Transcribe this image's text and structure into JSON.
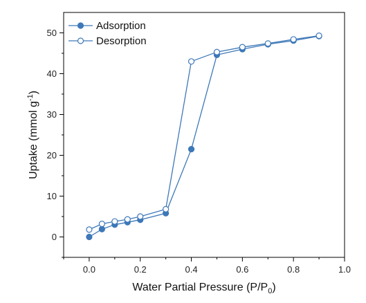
{
  "chart_data": {
    "type": "line",
    "xlabel": {
      "main": "Water Partial Pressure (P/P",
      "sub": "0",
      "end": ")"
    },
    "ylabel": {
      "main": "Uptake (mmol g",
      "sup": "-1",
      "end": ")"
    },
    "xlim": [
      -0.1,
      1.0
    ],
    "ylim": [
      -5,
      55
    ],
    "x_ticks": [
      0.0,
      0.2,
      0.4,
      0.6,
      0.8,
      1.0
    ],
    "x_tick_labels": [
      "0.0",
      "0.2",
      "0.4",
      "0.6",
      "0.8",
      "1.0"
    ],
    "y_ticks": [
      0,
      10,
      20,
      30,
      40,
      50
    ],
    "y_tick_labels": [
      "0",
      "10",
      "20",
      "30",
      "40",
      "50"
    ],
    "grid": false,
    "legend_position": "top-left",
    "color": "#3d78b8",
    "series": [
      {
        "name": "Adsorption",
        "marker": "filled-circle",
        "x": [
          0.0,
          0.05,
          0.1,
          0.15,
          0.2,
          0.3,
          0.4,
          0.5,
          0.6,
          0.7,
          0.8,
          0.9
        ],
        "y": [
          0.0,
          1.9,
          3.0,
          3.6,
          4.2,
          5.8,
          21.5,
          44.6,
          46.0,
          47.2,
          48.1,
          49.2
        ]
      },
      {
        "name": "Desorption",
        "marker": "open-circle",
        "x": [
          0.0,
          0.05,
          0.1,
          0.15,
          0.2,
          0.3,
          0.4,
          0.5,
          0.6,
          0.7,
          0.8,
          0.9
        ],
        "y": [
          1.8,
          3.2,
          3.8,
          4.3,
          5.0,
          6.8,
          43.0,
          45.3,
          46.5,
          47.4,
          48.4,
          49.3
        ]
      }
    ]
  }
}
